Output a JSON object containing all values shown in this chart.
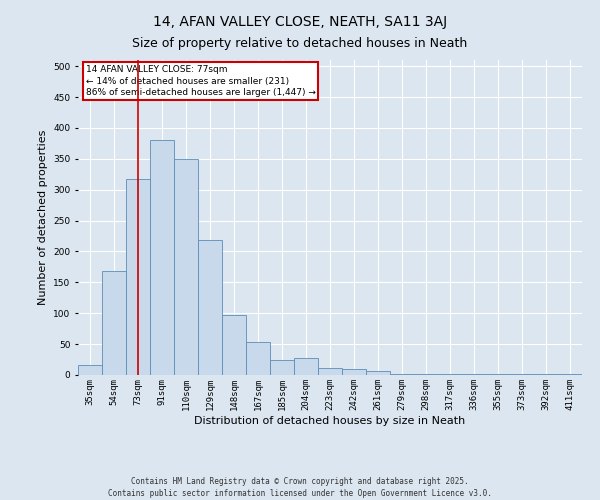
{
  "title_line1": "14, AFAN VALLEY CLOSE, NEATH, SA11 3AJ",
  "title_line2": "Size of property relative to detached houses in Neath",
  "xlabel": "Distribution of detached houses by size in Neath",
  "ylabel": "Number of detached properties",
  "categories": [
    "35sqm",
    "54sqm",
    "73sqm",
    "91sqm",
    "110sqm",
    "129sqm",
    "148sqm",
    "167sqm",
    "185sqm",
    "204sqm",
    "223sqm",
    "242sqm",
    "261sqm",
    "279sqm",
    "298sqm",
    "317sqm",
    "336sqm",
    "355sqm",
    "373sqm",
    "392sqm",
    "411sqm"
  ],
  "bar_heights": [
    17,
    168,
    317,
    380,
    349,
    218,
    97,
    54,
    25,
    28,
    12,
    10,
    6,
    2,
    2,
    2,
    2,
    2,
    2,
    2,
    2
  ],
  "bar_color": "#c9d9ec",
  "bar_edge_color": "#5b8db8",
  "annotation_line1": "14 AFAN VALLEY CLOSE: 77sqm",
  "annotation_line2": "← 14% of detached houses are smaller (231)",
  "annotation_line3": "86% of semi-detached houses are larger (1,447) →",
  "annotation_box_facecolor": "#ffffff",
  "annotation_box_edgecolor": "#cc0000",
  "vline_color": "#cc0000",
  "vline_x_index": 2,
  "background_color": "#dce6f0",
  "plot_background": "#dce6f0",
  "ylim_max": 510,
  "yticks": [
    0,
    50,
    100,
    150,
    200,
    250,
    300,
    350,
    400,
    450,
    500
  ],
  "footer_line1": "Contains HM Land Registry data © Crown copyright and database right 2025.",
  "footer_line2": "Contains public sector information licensed under the Open Government Licence v3.0.",
  "title_fontsize": 10,
  "subtitle_fontsize": 9,
  "tick_fontsize": 6.5,
  "ylabel_fontsize": 8,
  "xlabel_fontsize": 8,
  "annotation_fontsize": 6.5,
  "footer_fontsize": 5.5
}
